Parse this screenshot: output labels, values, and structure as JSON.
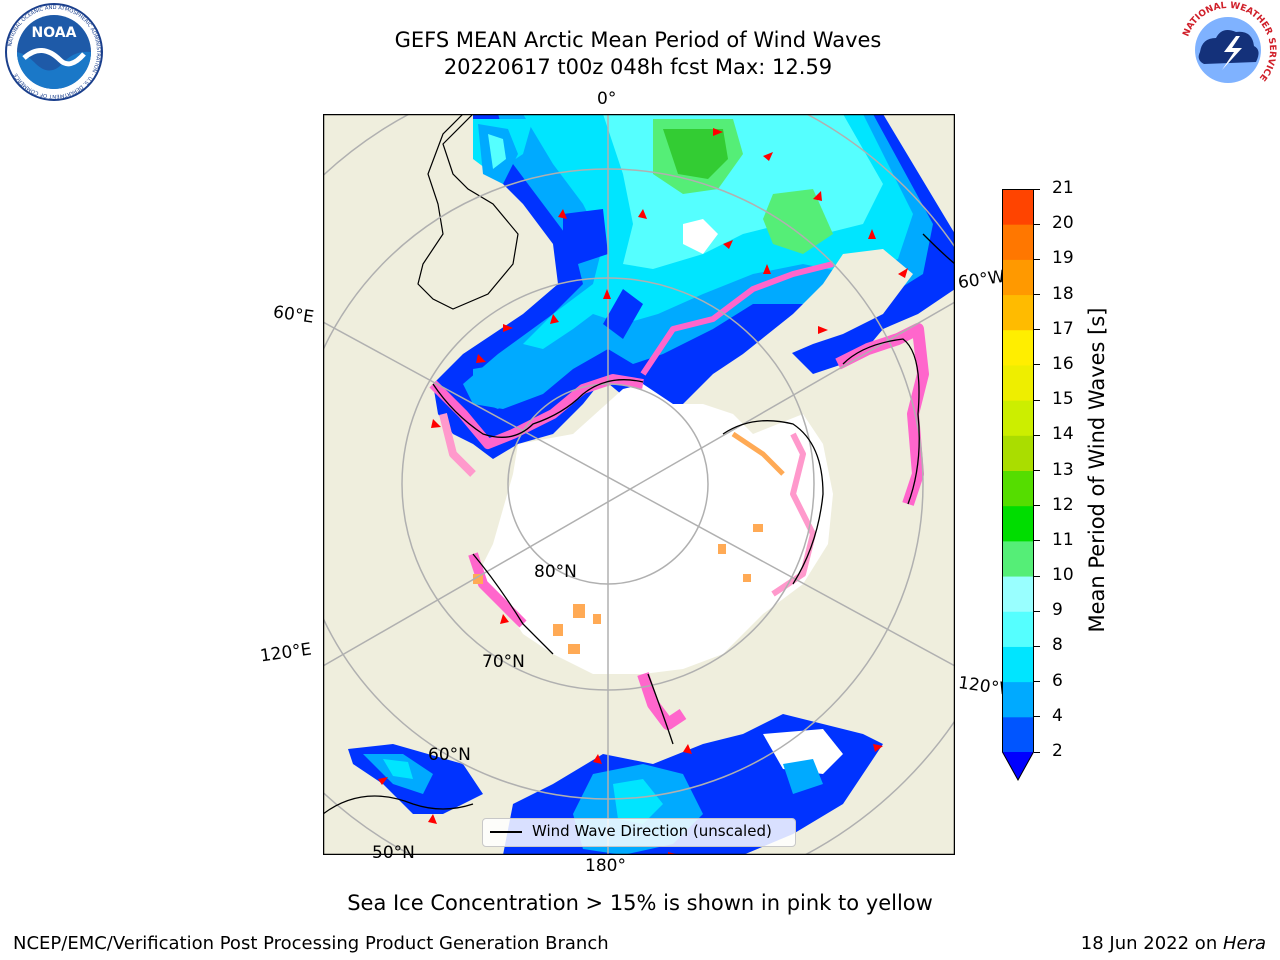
{
  "header": {
    "title_line1": "GEFS MEAN Arctic Mean Period of Wind Waves",
    "title_line2": "20220617 t00z 048h fcst   Max: 12.59"
  },
  "logos": {
    "left": {
      "text": "NOAA",
      "ring_text": "NATIONAL OCEANIC AND ATMOSPHERIC ADMINISTRATION · U.S. DEPARTMENT OF COMMERCE"
    },
    "right": {
      "ring_text": "NATIONAL WEATHER SERVICE"
    }
  },
  "map": {
    "lon_labels": {
      "top": "0°",
      "left_upper": "60°E",
      "left_lower": "120°E",
      "right_upper": "60°W",
      "right_lower": "120°W",
      "bottom": "180°"
    },
    "lat_labels": {
      "lat80": "80°N",
      "lat70": "70°N",
      "lat60": "60°N",
      "lat50": "50°N"
    },
    "legend": {
      "label": "Wind Wave Direction (unscaled)"
    },
    "colors": {
      "land": "#efeedd",
      "ice_pink": "#ff66cc",
      "ice_orange": "#ffaa55"
    }
  },
  "colorbar": {
    "label": "Mean Period of Wind Waves [s]",
    "ticks": [
      "2",
      "4",
      "6",
      "8",
      "9",
      "10",
      "11",
      "12",
      "13",
      "14",
      "15",
      "16",
      "17",
      "18",
      "19",
      "20",
      "21"
    ],
    "colors": [
      "#0055ff",
      "#00aaff",
      "#00e5ff",
      "#55ffff",
      "#99ffff",
      "#55ee77",
      "#00dd00",
      "#55dd00",
      "#aadd00",
      "#ccee00",
      "#eeee00",
      "#ffee00",
      "#ffbb00",
      "#ff9900",
      "#ff7700",
      "#ff4400",
      "#ff2200",
      "#ff0000"
    ],
    "under_color": "#0000ff"
  },
  "annotation": "Sea Ice Concentration > 15% is shown in pink to yellow",
  "footer": {
    "left": "NCEP/EMC/Verification Post Processing Product Generation Branch",
    "right_date": "18 Jun 2022 on ",
    "right_machine": "Hera"
  }
}
